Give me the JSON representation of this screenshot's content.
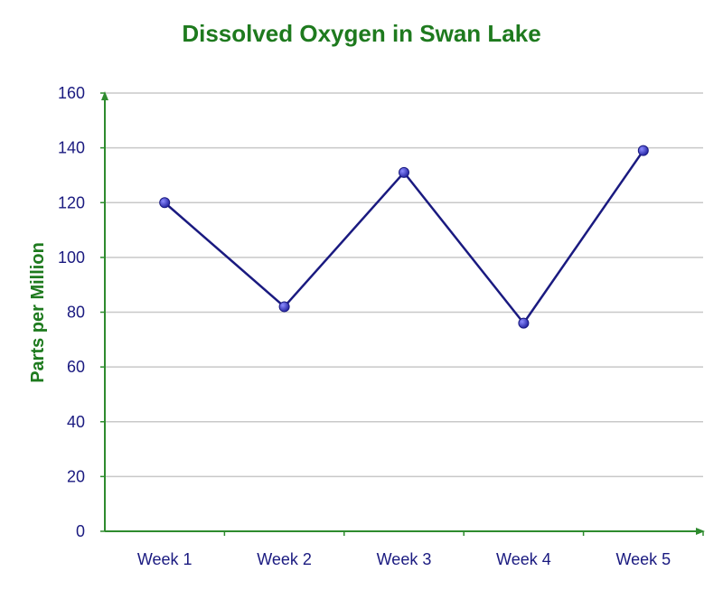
{
  "colors": {
    "title": "#1e7a1e",
    "axis": "#2e8b2e",
    "ylabel": "#1e7a1e",
    "tick": "#1a1a80",
    "line": "#1a1a80",
    "marker": "#1f1f9e",
    "grid": "#c8c8c8"
  },
  "chart_data": {
    "type": "line",
    "title": "Dissolved Oxygen in Swan Lake",
    "xlabel": "",
    "ylabel": "Parts per Million",
    "categories": [
      "Week 1",
      "Week 2",
      "Week 3",
      "Week 4",
      "Week 5"
    ],
    "series": [
      {
        "values": [
          120,
          82,
          131,
          76,
          139
        ]
      }
    ],
    "ylim": [
      0,
      160
    ],
    "yticks": [
      "0",
      "20",
      "40",
      "60",
      "80",
      "100",
      "120",
      "140",
      "160"
    ],
    "grid": true,
    "legend": "none"
  }
}
